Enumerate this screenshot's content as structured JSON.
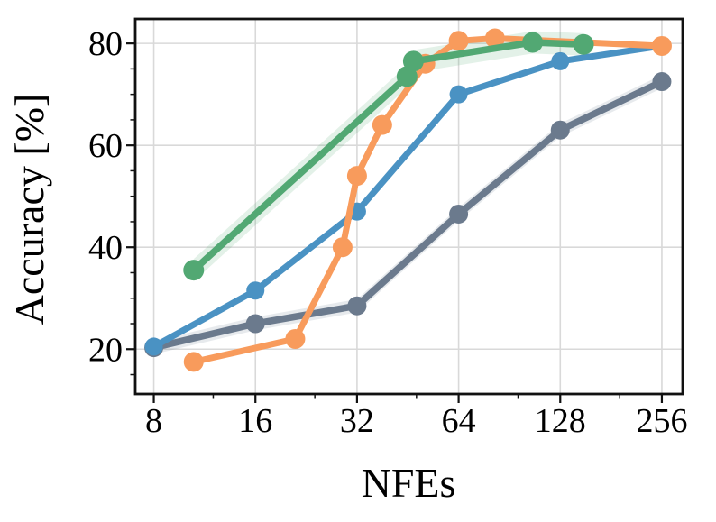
{
  "chart_data": {
    "type": "line",
    "title": "",
    "xlabel": "NFEs",
    "ylabel": "Accuracy [%]",
    "x_scale": "log2",
    "x_ticks": [
      8,
      16,
      32,
      64,
      128,
      256
    ],
    "x_minor_ticks": [
      12,
      24,
      48,
      96,
      192
    ],
    "y_ticks": [
      20,
      40,
      60,
      80
    ],
    "y_minor_ticks": [
      15,
      25,
      30,
      35,
      45,
      50,
      55,
      65,
      70,
      75
    ],
    "xlim": [
      7.05,
      295
    ],
    "ylim": [
      11.2,
      84.8
    ],
    "grid": "major-both",
    "legend_position": "none",
    "axis_color": "#111111",
    "grid_color": "#d9d9d9",
    "background_color": "#ffffff",
    "series": [
      {
        "name": "gray-line",
        "color": "#6b7a8d",
        "x": [
          8,
          16,
          32,
          64,
          128,
          256
        ],
        "y": [
          20.3,
          25,
          28.5,
          46.5,
          63,
          72.5
        ],
        "band": 1.3,
        "marker_r": 10.5,
        "line_w": 7.5
      },
      {
        "name": "blue-line",
        "color": "#4a92c3",
        "x": [
          8,
          16,
          32,
          64,
          128,
          256
        ],
        "y": [
          20.5,
          31.5,
          47,
          70,
          76.5,
          79.5
        ],
        "band": 0,
        "marker_r": 10,
        "line_w": 7
      },
      {
        "name": "orange-line",
        "color": "#f89b5c",
        "x": [
          10.5,
          21,
          29,
          32,
          38,
          51,
          64,
          82,
          256
        ],
        "y": [
          17.5,
          22,
          40,
          54,
          64,
          76,
          80.5,
          81,
          79.5
        ],
        "band": 0,
        "marker_r": 11,
        "line_w": 7
      },
      {
        "name": "green-line",
        "color": "#52a873",
        "x": [
          10.5,
          45,
          47,
          106,
          150
        ],
        "y": [
          35.5,
          73.5,
          76.5,
          80.2,
          79.8
        ],
        "band": 2.2,
        "marker_r": 11.5,
        "line_w": 7.5
      }
    ]
  }
}
